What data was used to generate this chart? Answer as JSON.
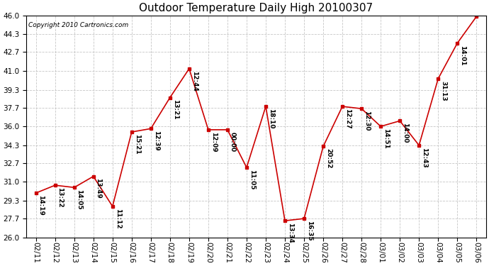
{
  "title": "Outdoor Temperature Daily High 20100307",
  "copyright": "Copyright 2010 Cartronics.com",
  "dates": [
    "02/11",
    "02/12",
    "02/13",
    "02/14",
    "02/15",
    "02/16",
    "02/17",
    "02/18",
    "02/19",
    "02/20",
    "02/21",
    "02/22",
    "02/23",
    "02/24",
    "02/25",
    "02/26",
    "02/27",
    "02/28",
    "03/01",
    "03/02",
    "03/03",
    "03/04",
    "03/05",
    "03/06"
  ],
  "values": [
    30.0,
    30.7,
    30.5,
    31.5,
    28.8,
    35.5,
    35.8,
    38.6,
    41.2,
    35.7,
    35.7,
    32.3,
    37.8,
    27.5,
    27.7,
    34.2,
    37.8,
    37.6,
    36.0,
    36.5,
    34.3,
    40.3,
    43.5,
    45.9
  ],
  "labels": [
    "14:19",
    "13:22",
    "14:05",
    "13:49",
    "11:12",
    "15:21",
    "12:39",
    "13:21",
    "12:44",
    "12:09",
    "00:00",
    "11:05",
    "18:10",
    "13:34",
    "16:35",
    "20:52",
    "12:27",
    "12:30",
    "14:51",
    "14:00",
    "12:43",
    "31:13",
    "14:01",
    ""
  ],
  "line_color": "#cc0000",
  "marker_color": "#cc0000",
  "bg_color": "#ffffff",
  "grid_color": "#c0c0c0",
  "ylim": [
    26.0,
    46.0
  ],
  "yticks": [
    26.0,
    27.7,
    29.3,
    31.0,
    32.7,
    34.3,
    36.0,
    37.7,
    39.3,
    41.0,
    42.7,
    44.3,
    46.0
  ],
  "title_fontsize": 11,
  "label_fontsize": 6.5,
  "tick_fontsize": 7.5,
  "copyright_fontsize": 6.5
}
